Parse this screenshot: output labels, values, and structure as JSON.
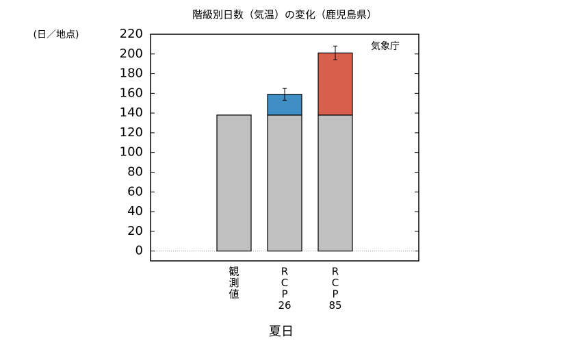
{
  "chart_data": {
    "type": "stacked-bar",
    "title": "階級別日数（気温）の変化（鹿児島県）",
    "y_label": "(日／地点)",
    "x_label": "夏日",
    "annotation": "気象庁",
    "categories": [
      [
        "観",
        "測",
        "値"
      ],
      [
        "R",
        "C",
        "P",
        "26"
      ],
      [
        "R",
        "C",
        "P",
        "85"
      ]
    ],
    "series": [
      {
        "color": "#c0c0c0",
        "values": [
          138,
          138,
          138
        ]
      },
      {
        "color": "#3f8fc4",
        "values": [
          null,
          21,
          null
        ],
        "errors": [
          null,
          6,
          null
        ]
      },
      {
        "color": "#d9604c",
        "values": [
          null,
          null,
          63
        ],
        "errors": [
          null,
          null,
          7
        ]
      }
    ],
    "ylim": [
      -10,
      220
    ],
    "yticks": [
      0,
      20,
      40,
      60,
      80,
      100,
      120,
      140,
      160,
      180,
      200,
      220
    ],
    "zero_line": true
  }
}
